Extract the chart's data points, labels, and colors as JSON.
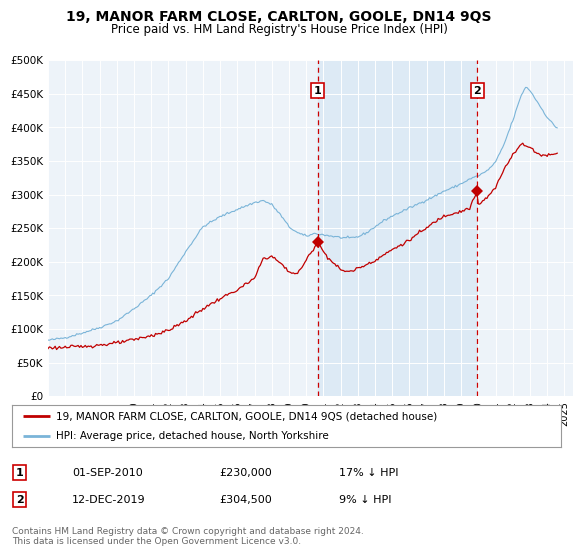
{
  "title": "19, MANOR FARM CLOSE, CARLTON, GOOLE, DN14 9QS",
  "subtitle": "Price paid vs. HM Land Registry's House Price Index (HPI)",
  "footer": "Contains HM Land Registry data © Crown copyright and database right 2024.\nThis data is licensed under the Open Government Licence v3.0.",
  "legend_line1": "19, MANOR FARM CLOSE, CARLTON, GOOLE, DN14 9QS (detached house)",
  "legend_line2": "HPI: Average price, detached house, North Yorkshire",
  "marker1_date": "01-SEP-2010",
  "marker1_price": "£230,000",
  "marker1_hpi": "17% ↓ HPI",
  "marker1_x": 2010.67,
  "marker1_y": 230000,
  "marker2_date": "12-DEC-2019",
  "marker2_price": "£304,500",
  "marker2_hpi": "9% ↓ HPI",
  "marker2_x": 2019.95,
  "marker2_y": 304500,
  "hpi_color": "#7ab4d8",
  "price_color": "#c00000",
  "shade_color": "#ddeaf5",
  "bg_color": "#edf3f9",
  "plot_bg": "#ffffff",
  "ylim": [
    0,
    500000
  ],
  "xlim_start": 1995.0,
  "xlim_end": 2025.5,
  "yticks": [
    0,
    50000,
    100000,
    150000,
    200000,
    250000,
    300000,
    350000,
    400000,
    450000,
    500000
  ],
  "ytick_labels": [
    "£0",
    "£50K",
    "£100K",
    "£150K",
    "£200K",
    "£250K",
    "£300K",
    "£350K",
    "£400K",
    "£450K",
    "£500K"
  ],
  "xtick_years": [
    1995,
    1996,
    1997,
    1998,
    1999,
    2000,
    2001,
    2002,
    2003,
    2004,
    2005,
    2006,
    2007,
    2008,
    2009,
    2010,
    2011,
    2012,
    2013,
    2014,
    2015,
    2016,
    2017,
    2018,
    2019,
    2020,
    2021,
    2022,
    2023,
    2024,
    2025
  ]
}
